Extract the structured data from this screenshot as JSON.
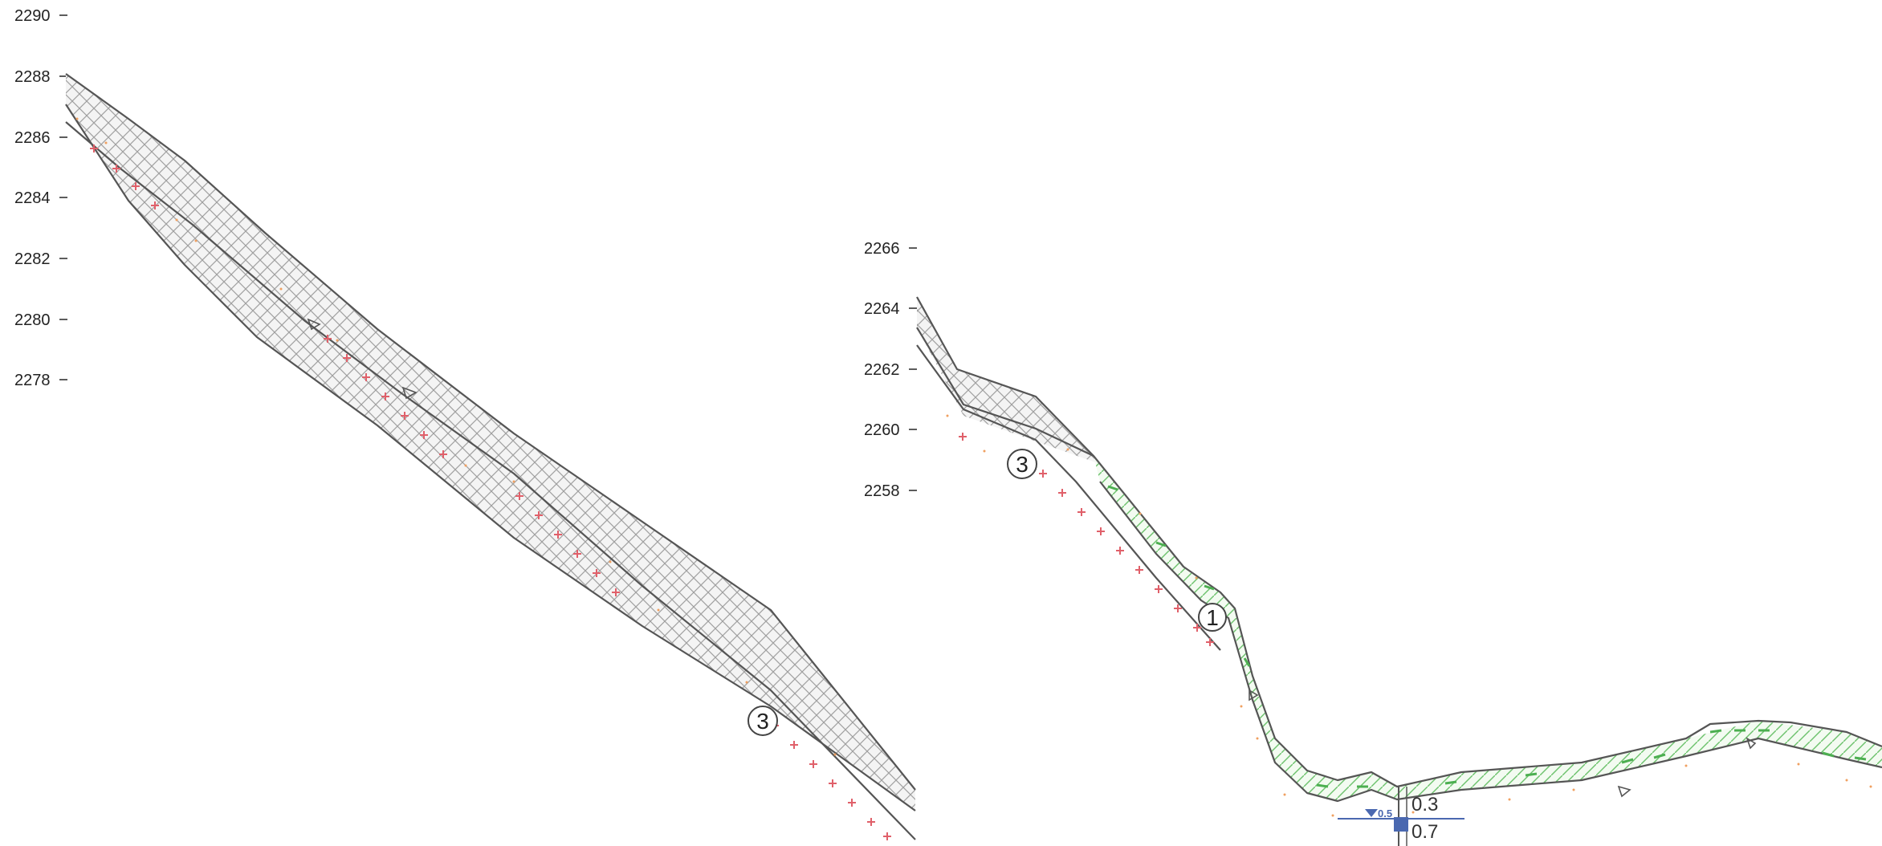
{
  "left_panel": {
    "elevation_ticks": [
      "2290",
      "2288",
      "2286",
      "2284",
      "2282",
      "2280",
      "2278"
    ],
    "callout": "3"
  },
  "right_panel": {
    "elevation_ticks": [
      "2266",
      "2264",
      "2262",
      "2260",
      "2258"
    ],
    "callouts": [
      "3",
      "1"
    ],
    "dimensions": {
      "upper": "0.3",
      "lower": "0.7",
      "small": "0.5"
    }
  },
  "colors": {
    "outline": "#555555",
    "hatch": "#9a9a9a",
    "green_hatch": "#5cb85c",
    "plus_marker": "#e0606a",
    "dots": "#f0a060",
    "dimension": "#4a68b0"
  }
}
